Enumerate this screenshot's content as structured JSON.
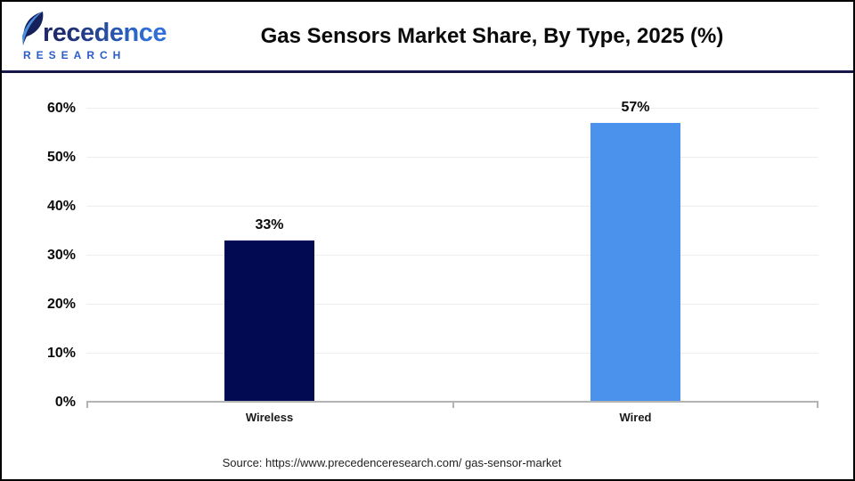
{
  "header": {
    "logo": {
      "brand_rest": "recedence",
      "subtitle": "RESEARCH"
    },
    "title": "Gas Sensors Market Share, By Type, 2025 (%)"
  },
  "footer": {
    "source": "Source: https://www.precedenceresearch.com/ gas-sensor-market"
  },
  "chart_data": {
    "type": "bar",
    "title": "Gas Sensors Market Share, By Type, 2025 (%)",
    "categories": [
      "Wireless",
      "Wired"
    ],
    "values": [
      33,
      57
    ],
    "value_labels": [
      "33%",
      "57%"
    ],
    "colors": [
      "#020a52",
      "#4a92ec"
    ],
    "xlabel": "",
    "ylabel": "",
    "ylim": [
      0,
      60
    ],
    "yticks": [
      60,
      50,
      40,
      30,
      20,
      10,
      0
    ],
    "ytick_labels": [
      "60%",
      "50%",
      "40%",
      "30%",
      "20%",
      "10%",
      "0%"
    ],
    "grid": "horizontal-light",
    "legend": "none",
    "source": "Source: https://www.precedenceresearch.com/ gas-sensor-market"
  },
  "colors": {
    "divider": "#16164a",
    "axis_line": "#b3b3b3",
    "gridline": "#ededed",
    "bar_wireless": "#020a52",
    "bar_wired": "#4a92ec",
    "logo_navy": "#1e2a6a",
    "logo_blue": "#2f6fd6"
  }
}
